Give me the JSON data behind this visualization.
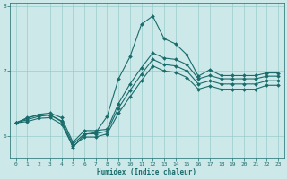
{
  "xlabel": "Humidex (Indice chaleur)",
  "x_values": [
    0,
    1,
    2,
    3,
    4,
    5,
    6,
    7,
    8,
    9,
    10,
    11,
    12,
    13,
    14,
    15,
    16,
    17,
    18,
    19,
    20,
    21,
    22,
    23
  ],
  "line_jagged": [
    6.2,
    6.28,
    6.32,
    6.32,
    6.22,
    5.82,
    6.02,
    6.05,
    6.3,
    6.88,
    7.22,
    7.72,
    7.85,
    7.5,
    7.42,
    7.25,
    6.92,
    7.02,
    6.93,
    6.93,
    6.93,
    6.93,
    6.97,
    6.97
  ],
  "line_upper": [
    6.2,
    6.27,
    6.33,
    6.35,
    6.28,
    5.9,
    6.08,
    6.08,
    6.1,
    6.5,
    6.8,
    7.05,
    7.28,
    7.2,
    7.18,
    7.1,
    6.88,
    6.93,
    6.88,
    6.88,
    6.88,
    6.88,
    6.92,
    6.92
  ],
  "line_mid1": [
    6.2,
    6.25,
    6.3,
    6.32,
    6.23,
    5.87,
    6.03,
    6.03,
    6.07,
    6.43,
    6.7,
    6.95,
    7.18,
    7.1,
    7.08,
    7.0,
    6.8,
    6.85,
    6.8,
    6.8,
    6.8,
    6.8,
    6.85,
    6.85
  ],
  "line_lower": [
    6.2,
    6.22,
    6.27,
    6.28,
    6.18,
    5.84,
    5.98,
    5.98,
    6.03,
    6.35,
    6.6,
    6.85,
    7.08,
    7.0,
    6.98,
    6.9,
    6.72,
    6.77,
    6.72,
    6.72,
    6.72,
    6.72,
    6.78,
    6.78
  ],
  "bg_color": "#cce8e8",
  "line_color": "#1a6b6b",
  "grid_color": "#99cccc",
  "ylim": [
    5.65,
    8.05
  ],
  "xlim": [
    -0.5,
    23.5
  ],
  "yticks": [
    6,
    7,
    8
  ],
  "xticks": [
    0,
    1,
    2,
    3,
    4,
    5,
    6,
    7,
    8,
    9,
    10,
    11,
    12,
    13,
    14,
    15,
    16,
    17,
    18,
    19,
    20,
    21,
    22,
    23
  ],
  "markersize": 2.0,
  "linewidth": 0.8
}
